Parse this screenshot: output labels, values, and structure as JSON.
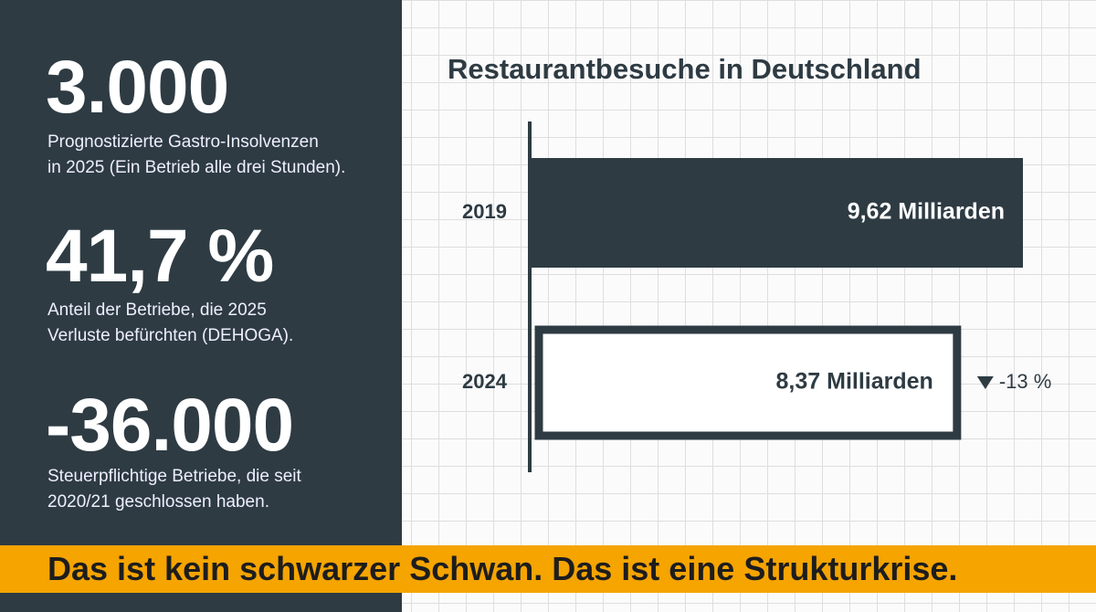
{
  "stats": [
    {
      "value": "3.000",
      "text": [
        "Prognostizierte Gastro-Insolvenzen",
        "in 2025 (Ein Betrieb alle drei Stunden)."
      ]
    },
    {
      "value": "41,7 %",
      "text": [
        "Anteil der Betriebe, die 2025",
        "Verluste befürchten (DEHOGA)."
      ]
    },
    {
      "value": "-36.000",
      "text": [
        "Steuerpflichtige Betriebe, die seit",
        "2020/21 geschlossen haben."
      ]
    }
  ],
  "chart_data": {
    "type": "hbar",
    "title": "Restaurantbesuche in Deutschland",
    "categories": [
      "2019",
      "2024"
    ],
    "values": [
      9.62,
      8.37
    ],
    "value_labels": [
      "9,62 Milliarden",
      "8,37 Milliarden"
    ],
    "colors": [
      "#2e3b43",
      "#ffffff"
    ],
    "annotation": "-13 %"
  },
  "banner": "Das ist kein schwarzer Schwan. Das ist eine Strukturkrise."
}
